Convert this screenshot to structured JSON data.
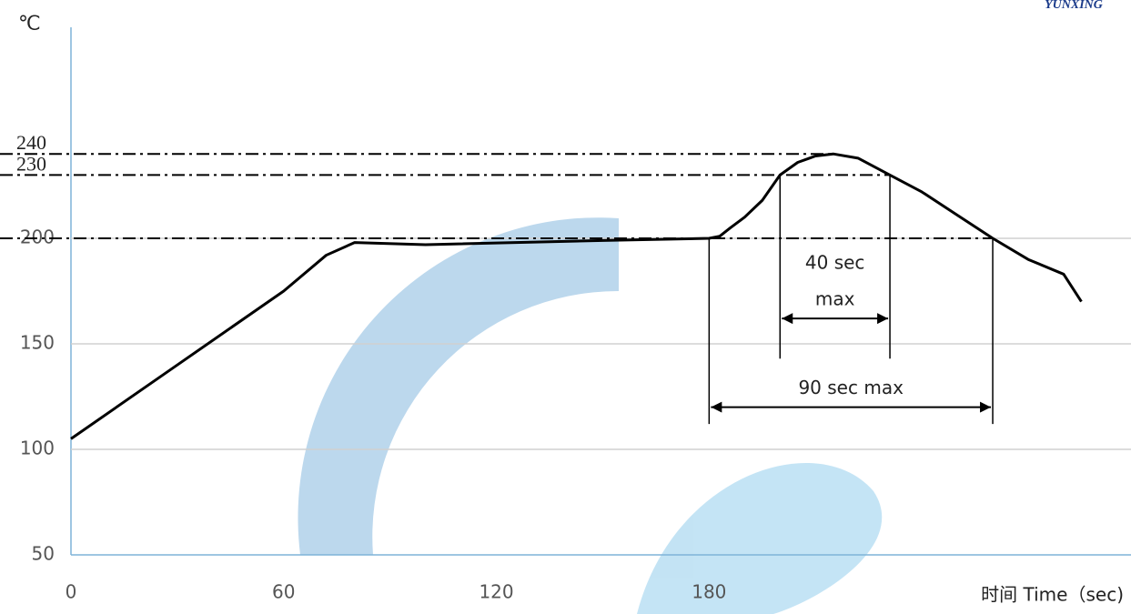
{
  "chart_data": {
    "type": "line",
    "logo": "YUNXING",
    "y_unit_label": "℃",
    "x_label": "时间 Time（sec)",
    "xlim": [
      0,
      299
    ],
    "xticks": [
      0,
      60,
      120,
      180
    ],
    "ylim": [
      50,
      300
    ],
    "yticks": [
      50,
      100,
      150,
      200
    ],
    "grid": true,
    "series": [
      {
        "color": "#000000",
        "x": [
          0,
          30,
          60,
          72,
          80,
          100,
          150,
          180,
          183,
          186,
          190,
          195,
          200,
          205,
          210,
          215,
          222,
          231,
          240,
          250,
          260,
          270,
          280,
          285
        ],
        "values": [
          105,
          140,
          175,
          192,
          198,
          197,
          199,
          200,
          201,
          205,
          210,
          218,
          230,
          236,
          239,
          240,
          238,
          230,
          222,
          211,
          200,
          190,
          183,
          170
        ]
      }
    ],
    "reference_lines": [
      {
        "value": 240,
        "label": "240",
        "until": 215
      },
      {
        "value": 230,
        "label": "230",
        "until": 231
      },
      {
        "value": 200,
        "until": 260
      }
    ],
    "spans": [
      {
        "label": [
          "40 sec",
          "max"
        ],
        "from": 200,
        "to": 231,
        "y": 162,
        "top": 230,
        "bottom": 143
      },
      {
        "label": [
          "90 sec max"
        ],
        "from": 180,
        "to": 260,
        "y": 120,
        "top": 200,
        "bottom": 112
      }
    ]
  }
}
